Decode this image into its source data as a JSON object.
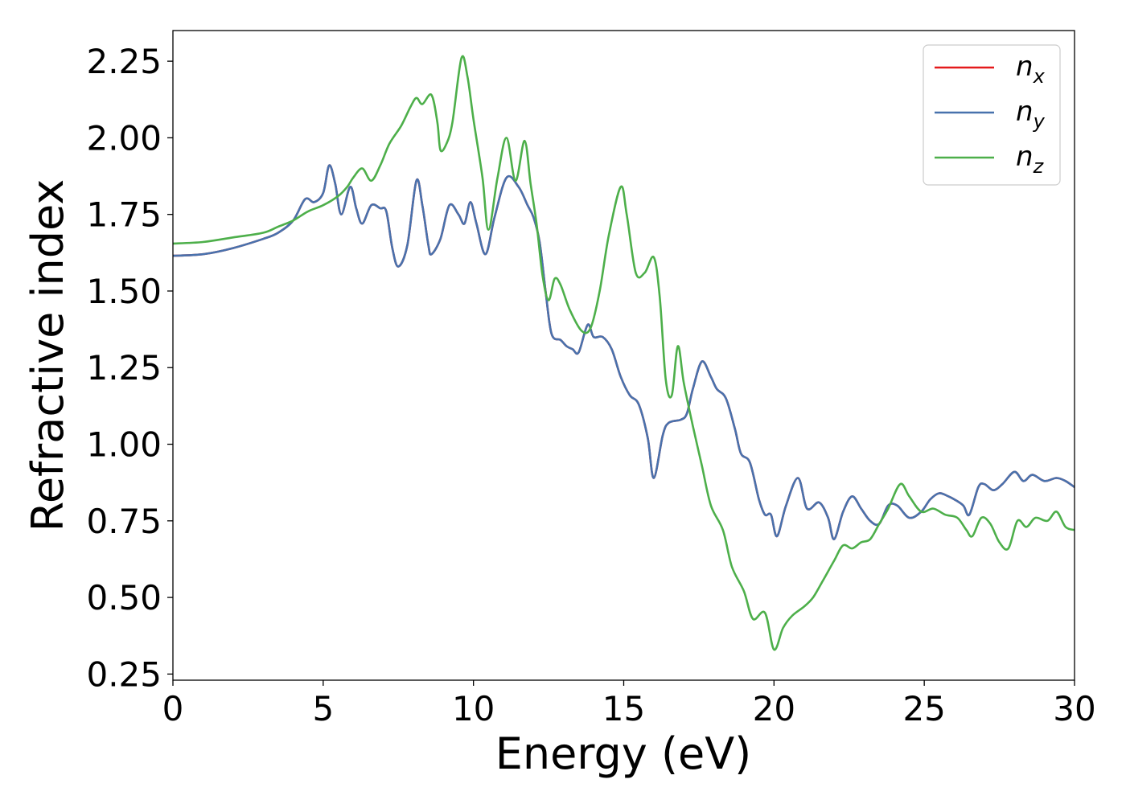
{
  "chart_data": {
    "type": "line",
    "title": "",
    "xlabel": "Energy (eV)",
    "ylabel": "Refractive index",
    "xlim": [
      0,
      30
    ],
    "ylim": [
      0.23,
      2.35
    ],
    "xticks": [
      0,
      5,
      10,
      15,
      20,
      25,
      30
    ],
    "xtick_labels": [
      "0",
      "5",
      "10",
      "15",
      "20",
      "25",
      "30"
    ],
    "yticks": [
      0.25,
      0.5,
      0.75,
      1.0,
      1.25,
      1.5,
      1.75,
      2.0,
      2.25
    ],
    "ytick_labels": [
      "0.25",
      "0.50",
      "0.75",
      "1.00",
      "1.25",
      "1.50",
      "1.75",
      "2.00",
      "2.25"
    ],
    "grid": false,
    "legend_position": "top-right",
    "series": [
      {
        "name": "n",
        "subscript": "x",
        "color": "#e41a1c",
        "points": [
          [
            0,
            1.615
          ],
          [
            1,
            1.62
          ],
          [
            2,
            1.64
          ],
          [
            3,
            1.67
          ],
          [
            3.5,
            1.69
          ],
          [
            4,
            1.73
          ],
          [
            4.4,
            1.8
          ],
          [
            4.7,
            1.79
          ],
          [
            5.0,
            1.82
          ],
          [
            5.2,
            1.91
          ],
          [
            5.4,
            1.85
          ],
          [
            5.6,
            1.75
          ],
          [
            5.9,
            1.84
          ],
          [
            6.1,
            1.77
          ],
          [
            6.3,
            1.72
          ],
          [
            6.6,
            1.78
          ],
          [
            6.9,
            1.77
          ],
          [
            7.1,
            1.76
          ],
          [
            7.3,
            1.64
          ],
          [
            7.5,
            1.58
          ],
          [
            7.8,
            1.65
          ],
          [
            8.1,
            1.86
          ],
          [
            8.3,
            1.78
          ],
          [
            8.5,
            1.65
          ],
          [
            8.6,
            1.62
          ],
          [
            8.9,
            1.67
          ],
          [
            9.2,
            1.78
          ],
          [
            9.5,
            1.75
          ],
          [
            9.7,
            1.72
          ],
          [
            9.9,
            1.79
          ],
          [
            10.1,
            1.72
          ],
          [
            10.4,
            1.62
          ],
          [
            10.7,
            1.74
          ],
          [
            11.1,
            1.87
          ],
          [
            11.5,
            1.84
          ],
          [
            11.8,
            1.78
          ],
          [
            12.0,
            1.74
          ],
          [
            12.2,
            1.66
          ],
          [
            12.4,
            1.5
          ],
          [
            12.6,
            1.36
          ],
          [
            12.9,
            1.34
          ],
          [
            13.1,
            1.32
          ],
          [
            13.3,
            1.31
          ],
          [
            13.5,
            1.3
          ],
          [
            13.8,
            1.39
          ],
          [
            14.0,
            1.35
          ],
          [
            14.3,
            1.35
          ],
          [
            14.6,
            1.31
          ],
          [
            14.9,
            1.22
          ],
          [
            15.2,
            1.16
          ],
          [
            15.5,
            1.13
          ],
          [
            15.8,
            1.02
          ],
          [
            16.0,
            0.89
          ],
          [
            16.3,
            1.03
          ],
          [
            16.5,
            1.07
          ],
          [
            16.9,
            1.08
          ],
          [
            17.1,
            1.1
          ],
          [
            17.3,
            1.18
          ],
          [
            17.6,
            1.27
          ],
          [
            17.9,
            1.22
          ],
          [
            18.1,
            1.18
          ],
          [
            18.4,
            1.15
          ],
          [
            18.7,
            1.05
          ],
          [
            18.9,
            0.97
          ],
          [
            19.2,
            0.94
          ],
          [
            19.5,
            0.82
          ],
          [
            19.7,
            0.77
          ],
          [
            19.9,
            0.77
          ],
          [
            20.1,
            0.7
          ],
          [
            20.4,
            0.8
          ],
          [
            20.8,
            0.89
          ],
          [
            21.1,
            0.79
          ],
          [
            21.5,
            0.81
          ],
          [
            21.8,
            0.76
          ],
          [
            22.0,
            0.69
          ],
          [
            22.3,
            0.78
          ],
          [
            22.6,
            0.83
          ],
          [
            22.9,
            0.79
          ],
          [
            23.2,
            0.75
          ],
          [
            23.5,
            0.74
          ],
          [
            23.8,
            0.8
          ],
          [
            24.1,
            0.8
          ],
          [
            24.5,
            0.76
          ],
          [
            24.9,
            0.78
          ],
          [
            25.2,
            0.82
          ],
          [
            25.5,
            0.84
          ],
          [
            25.8,
            0.83
          ],
          [
            26.0,
            0.82
          ],
          [
            26.3,
            0.8
          ],
          [
            26.5,
            0.77
          ],
          [
            26.8,
            0.86
          ],
          [
            27.0,
            0.87
          ],
          [
            27.3,
            0.85
          ],
          [
            27.6,
            0.87
          ],
          [
            28.0,
            0.91
          ],
          [
            28.3,
            0.88
          ],
          [
            28.6,
            0.9
          ],
          [
            29.0,
            0.88
          ],
          [
            29.4,
            0.89
          ],
          [
            29.7,
            0.88
          ],
          [
            30.0,
            0.86
          ]
        ]
      },
      {
        "name": "n",
        "subscript": "y",
        "color": "#4872ad",
        "points": [
          [
            0,
            1.615
          ],
          [
            1,
            1.62
          ],
          [
            2,
            1.64
          ],
          [
            3,
            1.67
          ],
          [
            3.5,
            1.69
          ],
          [
            4,
            1.73
          ],
          [
            4.4,
            1.8
          ],
          [
            4.7,
            1.79
          ],
          [
            5.0,
            1.82
          ],
          [
            5.2,
            1.91
          ],
          [
            5.4,
            1.85
          ],
          [
            5.6,
            1.75
          ],
          [
            5.9,
            1.84
          ],
          [
            6.1,
            1.77
          ],
          [
            6.3,
            1.72
          ],
          [
            6.6,
            1.78
          ],
          [
            6.9,
            1.77
          ],
          [
            7.1,
            1.76
          ],
          [
            7.3,
            1.64
          ],
          [
            7.5,
            1.58
          ],
          [
            7.8,
            1.65
          ],
          [
            8.1,
            1.86
          ],
          [
            8.3,
            1.78
          ],
          [
            8.5,
            1.65
          ],
          [
            8.6,
            1.62
          ],
          [
            8.9,
            1.67
          ],
          [
            9.2,
            1.78
          ],
          [
            9.5,
            1.75
          ],
          [
            9.7,
            1.72
          ],
          [
            9.9,
            1.79
          ],
          [
            10.1,
            1.72
          ],
          [
            10.4,
            1.62
          ],
          [
            10.7,
            1.74
          ],
          [
            11.1,
            1.87
          ],
          [
            11.5,
            1.84
          ],
          [
            11.8,
            1.78
          ],
          [
            12.0,
            1.74
          ],
          [
            12.2,
            1.66
          ],
          [
            12.4,
            1.5
          ],
          [
            12.6,
            1.36
          ],
          [
            12.9,
            1.34
          ],
          [
            13.1,
            1.32
          ],
          [
            13.3,
            1.31
          ],
          [
            13.5,
            1.3
          ],
          [
            13.8,
            1.39
          ],
          [
            14.0,
            1.35
          ],
          [
            14.3,
            1.35
          ],
          [
            14.6,
            1.31
          ],
          [
            14.9,
            1.22
          ],
          [
            15.2,
            1.16
          ],
          [
            15.5,
            1.13
          ],
          [
            15.8,
            1.02
          ],
          [
            16.0,
            0.89
          ],
          [
            16.3,
            1.03
          ],
          [
            16.5,
            1.07
          ],
          [
            16.9,
            1.08
          ],
          [
            17.1,
            1.1
          ],
          [
            17.3,
            1.18
          ],
          [
            17.6,
            1.27
          ],
          [
            17.9,
            1.22
          ],
          [
            18.1,
            1.18
          ],
          [
            18.4,
            1.15
          ],
          [
            18.7,
            1.05
          ],
          [
            18.9,
            0.97
          ],
          [
            19.2,
            0.94
          ],
          [
            19.5,
            0.82
          ],
          [
            19.7,
            0.77
          ],
          [
            19.9,
            0.77
          ],
          [
            20.1,
            0.7
          ],
          [
            20.4,
            0.8
          ],
          [
            20.8,
            0.89
          ],
          [
            21.1,
            0.79
          ],
          [
            21.5,
            0.81
          ],
          [
            21.8,
            0.76
          ],
          [
            22.0,
            0.69
          ],
          [
            22.3,
            0.78
          ],
          [
            22.6,
            0.83
          ],
          [
            22.9,
            0.79
          ],
          [
            23.2,
            0.75
          ],
          [
            23.5,
            0.74
          ],
          [
            23.8,
            0.8
          ],
          [
            24.1,
            0.8
          ],
          [
            24.5,
            0.76
          ],
          [
            24.9,
            0.78
          ],
          [
            25.2,
            0.82
          ],
          [
            25.5,
            0.84
          ],
          [
            25.8,
            0.83
          ],
          [
            26.0,
            0.82
          ],
          [
            26.3,
            0.8
          ],
          [
            26.5,
            0.77
          ],
          [
            26.8,
            0.86
          ],
          [
            27.0,
            0.87
          ],
          [
            27.3,
            0.85
          ],
          [
            27.6,
            0.87
          ],
          [
            28.0,
            0.91
          ],
          [
            28.3,
            0.88
          ],
          [
            28.6,
            0.9
          ],
          [
            29.0,
            0.88
          ],
          [
            29.4,
            0.89
          ],
          [
            29.7,
            0.88
          ],
          [
            30.0,
            0.86
          ]
        ]
      },
      {
        "name": "n",
        "subscript": "z",
        "color": "#4daf4a",
        "points": [
          [
            0,
            1.655
          ],
          [
            1,
            1.66
          ],
          [
            2,
            1.675
          ],
          [
            3,
            1.69
          ],
          [
            3.5,
            1.71
          ],
          [
            4,
            1.73
          ],
          [
            4.5,
            1.76
          ],
          [
            5,
            1.78
          ],
          [
            5.5,
            1.81
          ],
          [
            5.8,
            1.84
          ],
          [
            6.0,
            1.87
          ],
          [
            6.3,
            1.9
          ],
          [
            6.6,
            1.86
          ],
          [
            6.9,
            1.91
          ],
          [
            7.2,
            1.98
          ],
          [
            7.6,
            2.04
          ],
          [
            7.9,
            2.1
          ],
          [
            8.1,
            2.13
          ],
          [
            8.3,
            2.11
          ],
          [
            8.6,
            2.14
          ],
          [
            8.8,
            2.05
          ],
          [
            8.9,
            1.96
          ],
          [
            9.1,
            1.98
          ],
          [
            9.3,
            2.05
          ],
          [
            9.6,
            2.26
          ],
          [
            9.8,
            2.2
          ],
          [
            10.0,
            2.06
          ],
          [
            10.3,
            1.87
          ],
          [
            10.5,
            1.7
          ],
          [
            10.8,
            1.87
          ],
          [
            11.1,
            2.0
          ],
          [
            11.4,
            1.86
          ],
          [
            11.7,
            1.99
          ],
          [
            11.9,
            1.85
          ],
          [
            12.1,
            1.72
          ],
          [
            12.3,
            1.55
          ],
          [
            12.5,
            1.47
          ],
          [
            12.7,
            1.54
          ],
          [
            12.9,
            1.52
          ],
          [
            13.2,
            1.44
          ],
          [
            13.6,
            1.37
          ],
          [
            13.9,
            1.38
          ],
          [
            14.2,
            1.5
          ],
          [
            14.5,
            1.68
          ],
          [
            14.9,
            1.84
          ],
          [
            15.1,
            1.75
          ],
          [
            15.4,
            1.56
          ],
          [
            15.7,
            1.56
          ],
          [
            16.0,
            1.61
          ],
          [
            16.2,
            1.48
          ],
          [
            16.4,
            1.21
          ],
          [
            16.6,
            1.16
          ],
          [
            16.8,
            1.32
          ],
          [
            17.0,
            1.2
          ],
          [
            17.3,
            1.06
          ],
          [
            17.6,
            0.93
          ],
          [
            17.9,
            0.8
          ],
          [
            18.3,
            0.72
          ],
          [
            18.6,
            0.6
          ],
          [
            19.0,
            0.52
          ],
          [
            19.3,
            0.43
          ],
          [
            19.7,
            0.45
          ],
          [
            20.0,
            0.33
          ],
          [
            20.3,
            0.4
          ],
          [
            20.6,
            0.44
          ],
          [
            21.0,
            0.47
          ],
          [
            21.3,
            0.5
          ],
          [
            21.6,
            0.55
          ],
          [
            22.0,
            0.62
          ],
          [
            22.3,
            0.67
          ],
          [
            22.6,
            0.66
          ],
          [
            22.9,
            0.68
          ],
          [
            23.2,
            0.69
          ],
          [
            23.5,
            0.74
          ],
          [
            23.8,
            0.79
          ],
          [
            24.2,
            0.87
          ],
          [
            24.5,
            0.83
          ],
          [
            24.9,
            0.78
          ],
          [
            25.3,
            0.79
          ],
          [
            25.7,
            0.77
          ],
          [
            26.1,
            0.76
          ],
          [
            26.4,
            0.72
          ],
          [
            26.6,
            0.7
          ],
          [
            26.9,
            0.76
          ],
          [
            27.2,
            0.74
          ],
          [
            27.5,
            0.68
          ],
          [
            27.8,
            0.66
          ],
          [
            28.1,
            0.75
          ],
          [
            28.4,
            0.73
          ],
          [
            28.7,
            0.76
          ],
          [
            29.1,
            0.75
          ],
          [
            29.4,
            0.78
          ],
          [
            29.7,
            0.73
          ],
          [
            30.0,
            0.72
          ]
        ]
      }
    ]
  }
}
